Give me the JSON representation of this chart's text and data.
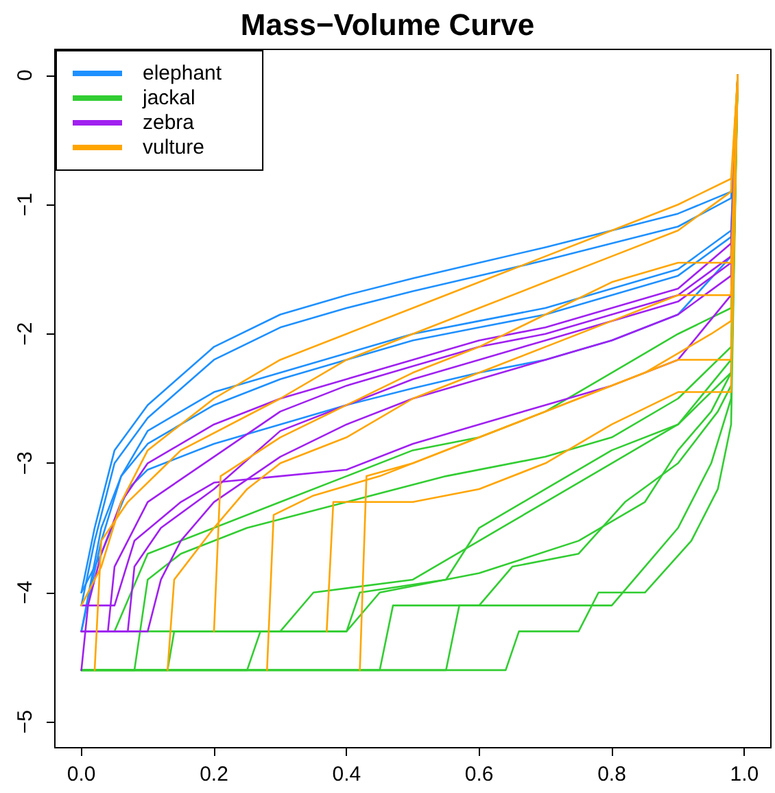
{
  "chart_data": {
    "type": "line",
    "title": "Mass−Volume Curve",
    "xlim": [
      -0.04,
      1.04
    ],
    "xticks": [
      {
        "value": 0,
        "label": "0.0"
      },
      0.2,
      0.4,
      0.6,
      0.8,
      {
        "value": 1,
        "label": "1.0"
      }
    ],
    "ylim": [
      -5.2,
      0.2
    ],
    "yticks": [
      -5,
      -4,
      -3,
      -2,
      -1,
      0
    ],
    "grid": false,
    "legend": "top left",
    "marker": "none",
    "line_style": "solid",
    "series": [
      {
        "name": "elephant",
        "color": "#1e90ff",
        "x": [
          0,
          0.02,
          0.05,
          0.1,
          0.2,
          0.3,
          0.4,
          0.5,
          0.6,
          0.7,
          0.8,
          0.9,
          0.98,
          0.99
        ],
        "values": [
          -4.0,
          -3.5,
          -2.9,
          -2.55,
          -2.1,
          -1.85,
          -1.7,
          -1.57,
          -1.45,
          -1.33,
          -1.2,
          -1.07,
          -0.9,
          0
        ]
      },
      {
        "color": "#1e90ff",
        "x": [
          0,
          0.02,
          0.05,
          0.1,
          0.2,
          0.3,
          0.4,
          0.5,
          0.6,
          0.7,
          0.8,
          0.9,
          0.98,
          0.99
        ],
        "values": [
          -4.1,
          -3.6,
          -3.0,
          -2.65,
          -2.2,
          -1.95,
          -1.8,
          -1.67,
          -1.55,
          -1.43,
          -1.3,
          -1.17,
          -0.95,
          0
        ]
      },
      {
        "color": "#1e90ff",
        "x": [
          0,
          0.03,
          0.06,
          0.1,
          0.2,
          0.3,
          0.4,
          0.5,
          0.6,
          0.7,
          0.8,
          0.9,
          0.98,
          0.99
        ],
        "values": [
          -4.3,
          -3.6,
          -3.1,
          -2.85,
          -2.55,
          -2.35,
          -2.2,
          -2.05,
          -1.95,
          -1.85,
          -1.7,
          -1.55,
          -1.25,
          0
        ]
      },
      {
        "color": "#1e90ff",
        "x": [
          0,
          0.03,
          0.06,
          0.1,
          0.2,
          0.3,
          0.4,
          0.5,
          0.6,
          0.7,
          0.8,
          0.9,
          0.98,
          0.99
        ],
        "values": [
          -4.3,
          -3.5,
          -3.1,
          -2.75,
          -2.45,
          -2.3,
          -2.15,
          -2.0,
          -1.9,
          -1.8,
          -1.65,
          -1.5,
          -1.2,
          0
        ]
      },
      {
        "color": "#1e90ff",
        "x": [
          0,
          0.03,
          0.07,
          0.1,
          0.2,
          0.3,
          0.4,
          0.5,
          0.6,
          0.7,
          0.8,
          0.9,
          0.98,
          0.99
        ],
        "values": [
          -4.0,
          -3.7,
          -3.2,
          -3.05,
          -2.85,
          -2.7,
          -2.55,
          -2.42,
          -2.3,
          -2.2,
          -2.05,
          -1.85,
          -1.4,
          0
        ]
      },
      {
        "name": "jackal",
        "color": "#32cd32",
        "x": [
          0,
          0.25,
          0.27,
          0.4,
          0.45,
          0.6,
          0.75,
          0.85,
          0.9,
          0.95,
          0.98,
          0.99
        ],
        "values": [
          -4.6,
          -4.6,
          -4.3,
          -4.3,
          -4.0,
          -3.85,
          -3.6,
          -3.3,
          -2.9,
          -2.6,
          -2.3,
          0
        ]
      },
      {
        "color": "#32cd32",
        "x": [
          0,
          0.13,
          0.14,
          0.3,
          0.35,
          0.5,
          0.6,
          0.7,
          0.8,
          0.9,
          0.98,
          0.99
        ],
        "values": [
          -4.6,
          -4.6,
          -4.3,
          -4.3,
          -4.0,
          -3.9,
          -3.6,
          -3.3,
          -3.0,
          -2.7,
          -2.2,
          0
        ]
      },
      {
        "color": "#32cd32",
        "x": [
          0,
          0.64,
          0.66,
          0.75,
          0.78,
          0.85,
          0.92,
          0.96,
          0.98,
          0.99
        ],
        "values": [
          -4.6,
          -4.6,
          -4.3,
          -4.3,
          -4.0,
          -4.0,
          -3.6,
          -3.2,
          -2.7,
          0
        ]
      },
      {
        "color": "#32cd32",
        "x": [
          0,
          0.05,
          0.1,
          0.2,
          0.3,
          0.4,
          0.5,
          0.6,
          0.7,
          0.8,
          0.9,
          0.98,
          0.99
        ],
        "values": [
          -4.3,
          -4.3,
          -3.7,
          -3.5,
          -3.3,
          -3.1,
          -2.9,
          -2.8,
          -2.6,
          -2.3,
          -2.0,
          -1.8,
          0
        ]
      },
      {
        "color": "#32cd32",
        "x": [
          0,
          0.08,
          0.1,
          0.15,
          0.25,
          0.4,
          0.55,
          0.7,
          0.8,
          0.9,
          0.98,
          0.99
        ],
        "values": [
          -4.6,
          -4.6,
          -3.9,
          -3.7,
          -3.5,
          -3.3,
          -3.1,
          -2.95,
          -2.8,
          -2.5,
          -2.1,
          0
        ]
      },
      {
        "color": "#32cd32",
        "x": [
          0,
          0.45,
          0.47,
          0.6,
          0.65,
          0.75,
          0.82,
          0.9,
          0.96,
          0.98,
          0.99
        ],
        "values": [
          -4.6,
          -4.6,
          -4.1,
          -4.1,
          -3.8,
          -3.7,
          -3.3,
          -3.0,
          -2.6,
          -2.4,
          0
        ]
      },
      {
        "color": "#32cd32",
        "x": [
          0,
          0.4,
          0.42,
          0.55,
          0.6,
          0.7,
          0.8,
          0.9,
          0.98,
          0.99
        ],
        "values": [
          -4.3,
          -4.3,
          -4.0,
          -3.9,
          -3.5,
          -3.2,
          -2.9,
          -2.7,
          -2.3,
          0
        ]
      },
      {
        "color": "#32cd32",
        "x": [
          0,
          0.55,
          0.57,
          0.8,
          0.85,
          0.9,
          0.95,
          0.98,
          0.99
        ],
        "values": [
          -4.6,
          -4.6,
          -4.1,
          -4.1,
          -3.8,
          -3.5,
          -3.0,
          -2.5,
          0
        ]
      },
      {
        "name": "zebra",
        "color": "#a020f0",
        "x": [
          0,
          0.1,
          0.12,
          0.15,
          0.2,
          0.3,
          0.4,
          0.5,
          0.6,
          0.7,
          0.8,
          0.9,
          0.98,
          0.99
        ],
        "values": [
          -4.3,
          -4.3,
          -3.9,
          -3.6,
          -3.3,
          -2.95,
          -2.7,
          -2.5,
          -2.35,
          -2.2,
          -2.05,
          -1.85,
          -1.55,
          0
        ]
      },
      {
        "color": "#a020f0",
        "x": [
          0,
          0.01,
          0.03,
          0.06,
          0.1,
          0.2,
          0.3,
          0.4,
          0.5,
          0.6,
          0.7,
          0.8,
          0.9,
          0.98,
          0.99
        ],
        "values": [
          -4.6,
          -4.1,
          -3.7,
          -3.3,
          -3.0,
          -2.7,
          -2.5,
          -2.35,
          -2.2,
          -2.05,
          -1.95,
          -1.8,
          -1.65,
          -1.3,
          0
        ]
      },
      {
        "color": "#a020f0",
        "x": [
          0,
          0.04,
          0.05,
          0.1,
          0.2,
          0.3,
          0.4,
          0.5,
          0.6,
          0.7,
          0.8,
          0.9,
          0.98,
          0.99
        ],
        "values": [
          -4.3,
          -4.3,
          -3.8,
          -3.3,
          -2.95,
          -2.6,
          -2.4,
          -2.25,
          -2.1,
          -2.0,
          -1.85,
          -1.7,
          -1.4,
          0
        ]
      },
      {
        "color": "#a020f0",
        "x": [
          0,
          0.05,
          0.08,
          0.15,
          0.2,
          0.3,
          0.4,
          0.5,
          0.6,
          0.7,
          0.8,
          0.9,
          0.98,
          0.99
        ],
        "values": [
          -4.1,
          -4.1,
          -3.6,
          -3.3,
          -3.15,
          -3.1,
          -3.05,
          -2.85,
          -2.7,
          -2.55,
          -2.4,
          -2.2,
          -1.7,
          0
        ]
      },
      {
        "color": "#a020f0",
        "x": [
          0,
          0.07,
          0.08,
          0.12,
          0.2,
          0.3,
          0.4,
          0.5,
          0.6,
          0.7,
          0.8,
          0.9,
          0.98,
          0.99
        ],
        "values": [
          -4.3,
          -4.3,
          -3.8,
          -3.5,
          -3.2,
          -2.75,
          -2.55,
          -2.35,
          -2.2,
          -2.05,
          -1.9,
          -1.75,
          -1.45,
          0
        ]
      },
      {
        "name": "vulture",
        "color": "#ffa500",
        "x": [
          0,
          0.03,
          0.06,
          0.1,
          0.2,
          0.3,
          0.4,
          0.5,
          0.6,
          0.7,
          0.8,
          0.9,
          0.98,
          0.99
        ],
        "values": [
          -4.1,
          -3.8,
          -3.3,
          -2.9,
          -2.5,
          -2.2,
          -2.0,
          -1.8,
          -1.6,
          -1.4,
          -1.2,
          -1.0,
          -0.8,
          0
        ]
      },
      {
        "color": "#ffa500",
        "x": [
          0.02,
          0.03,
          0.07,
          0.15,
          0.3,
          0.4,
          0.5,
          0.6,
          0.7,
          0.8,
          0.9,
          0.98,
          0.99
        ],
        "values": [
          -4.6,
          -3.6,
          -3.3,
          -2.9,
          -2.5,
          -2.2,
          -2.0,
          -1.8,
          -1.6,
          -1.4,
          -1.2,
          -0.9,
          0
        ]
      },
      {
        "color": "#ffa500",
        "x": [
          0.13,
          0.14,
          0.2,
          0.25,
          0.3,
          0.4,
          0.5,
          0.6,
          0.7,
          0.8,
          0.9,
          0.98,
          0.99
        ],
        "values": [
          -4.6,
          -3.9,
          -3.5,
          -3.2,
          -3.0,
          -2.8,
          -2.5,
          -2.3,
          -2.1,
          -1.9,
          -1.7,
          -1.7,
          0
        ]
      },
      {
        "color": "#ffa500",
        "x": [
          0.2,
          0.21,
          0.3,
          0.4,
          0.5,
          0.6,
          0.7,
          0.8,
          0.9,
          0.98,
          0.99
        ],
        "values": [
          -4.3,
          -3.1,
          -2.8,
          -2.55,
          -2.3,
          -2.1,
          -1.85,
          -1.6,
          -1.45,
          -1.45,
          0
        ]
      },
      {
        "color": "#ffa500",
        "x": [
          0.28,
          0.29,
          0.35,
          0.45,
          0.55,
          0.65,
          0.75,
          0.85,
          0.95,
          0.98,
          0.99
        ],
        "values": [
          -4.6,
          -3.4,
          -3.25,
          -3.1,
          -2.9,
          -2.7,
          -2.5,
          -2.3,
          -2.0,
          -1.9,
          0
        ]
      },
      {
        "color": "#ffa500",
        "x": [
          0.37,
          0.38,
          0.5,
          0.6,
          0.7,
          0.8,
          0.9,
          0.98,
          0.99
        ],
        "values": [
          -4.3,
          -3.3,
          -3.3,
          -3.2,
          -3.0,
          -2.7,
          -2.45,
          -2.45,
          0
        ]
      },
      {
        "color": "#ffa500",
        "x": [
          0.42,
          0.43,
          0.5,
          0.6,
          0.7,
          0.8,
          0.9,
          0.98,
          0.99
        ],
        "values": [
          -4.6,
          -3.1,
          -3.0,
          -2.8,
          -2.6,
          -2.4,
          -2.2,
          -2.2,
          0
        ]
      }
    ]
  }
}
